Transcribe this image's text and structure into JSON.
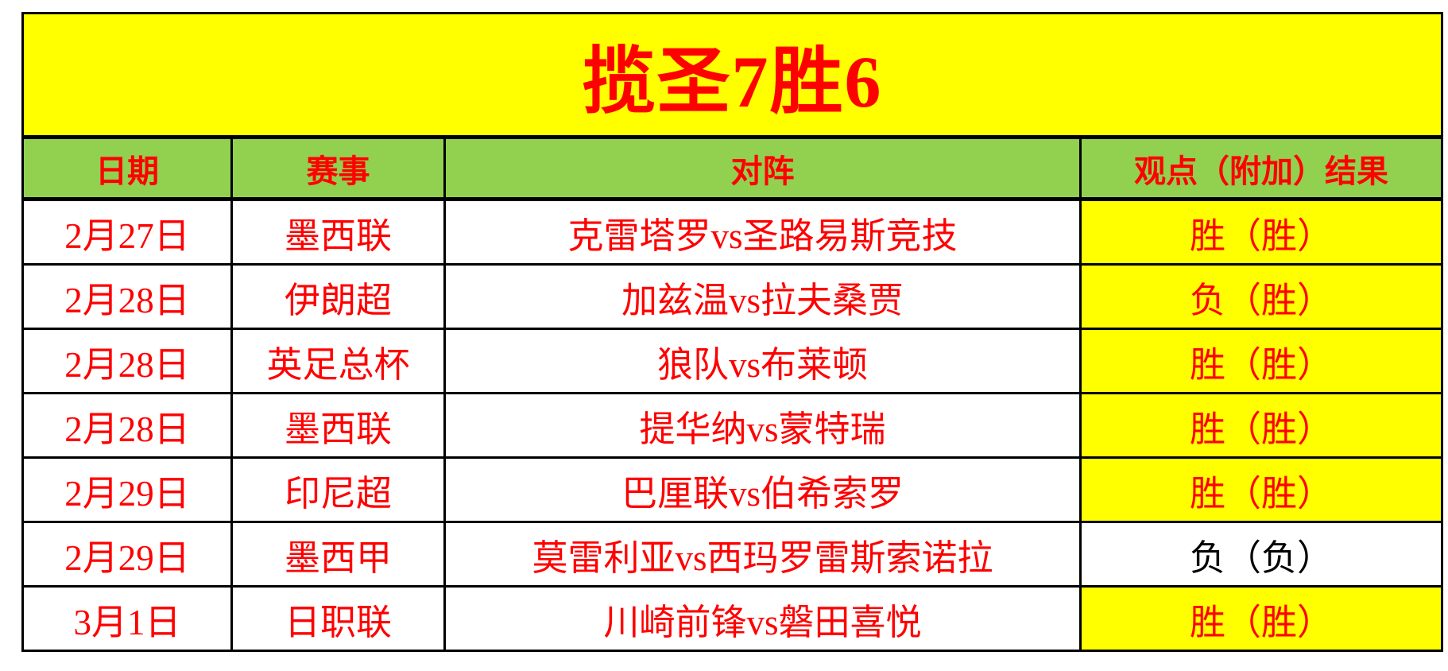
{
  "title": "揽圣7胜6",
  "colors": {
    "title_bg": "#ffff00",
    "header_bg": "#92d050",
    "highlight_bg": "#ffff00",
    "text_red": "#ff0000",
    "text_black": "#000000",
    "border": "#000000",
    "page_bg": "#ffffff"
  },
  "table": {
    "headers": [
      "日期",
      "赛事",
      "对阵",
      "观点（附加）结果"
    ],
    "rows": [
      {
        "date": "2月27日",
        "league": "墨西联",
        "match": "克雷塔罗vs圣路易斯竞技",
        "result": "胜（胜）",
        "result_highlight": true
      },
      {
        "date": "2月28日",
        "league": "伊朗超",
        "match": "加兹温vs拉夫桑贾",
        "result": "负（胜）",
        "result_highlight": true
      },
      {
        "date": "2月28日",
        "league": "英足总杯",
        "match": "狼队vs布莱顿",
        "result": "胜（胜）",
        "result_highlight": true
      },
      {
        "date": "2月28日",
        "league": "墨西联",
        "match": "提华纳vs蒙特瑞",
        "result": "胜（胜）",
        "result_highlight": true
      },
      {
        "date": "2月29日",
        "league": "印尼超",
        "match": "巴厘联vs伯希索罗",
        "result": "胜（胜）",
        "result_highlight": true
      },
      {
        "date": "2月29日",
        "league": "墨西甲",
        "match": "莫雷利亚vs西玛罗雷斯索诺拉",
        "result": "负（负）",
        "result_highlight": false
      },
      {
        "date": "3月1日",
        "league": "日职联",
        "match": "川崎前锋vs磐田喜悦",
        "result": "胜（胜）",
        "result_highlight": true
      }
    ]
  },
  "chart_data": {
    "type": "table",
    "title": "揽圣7胜6",
    "columns": [
      "日期",
      "赛事",
      "对阵",
      "观点（附加）结果"
    ],
    "rows": [
      [
        "2月27日",
        "墨西联",
        "克雷塔罗vs圣路易斯竞技",
        "胜（胜）"
      ],
      [
        "2月28日",
        "伊朗超",
        "加兹温vs拉夫桑贾",
        "负（胜）"
      ],
      [
        "2月28日",
        "英足总杯",
        "狼队vs布莱顿",
        "胜（胜）"
      ],
      [
        "2月28日",
        "墨西联",
        "提华纳vs蒙特瑞",
        "胜（胜）"
      ],
      [
        "2月29日",
        "印尼超",
        "巴厘联vs伯希索罗",
        "胜（胜）"
      ],
      [
        "2月29日",
        "墨西甲",
        "莫雷利亚vs西玛罗雷斯索诺拉",
        "负（负）"
      ],
      [
        "3月1日",
        "日职联",
        "川崎前锋vs磐田喜悦",
        "胜（胜）"
      ]
    ],
    "notes": "Result cells with a win record are highlighted yellow with red text; the losing pick row (负（负）) is white with black text."
  }
}
